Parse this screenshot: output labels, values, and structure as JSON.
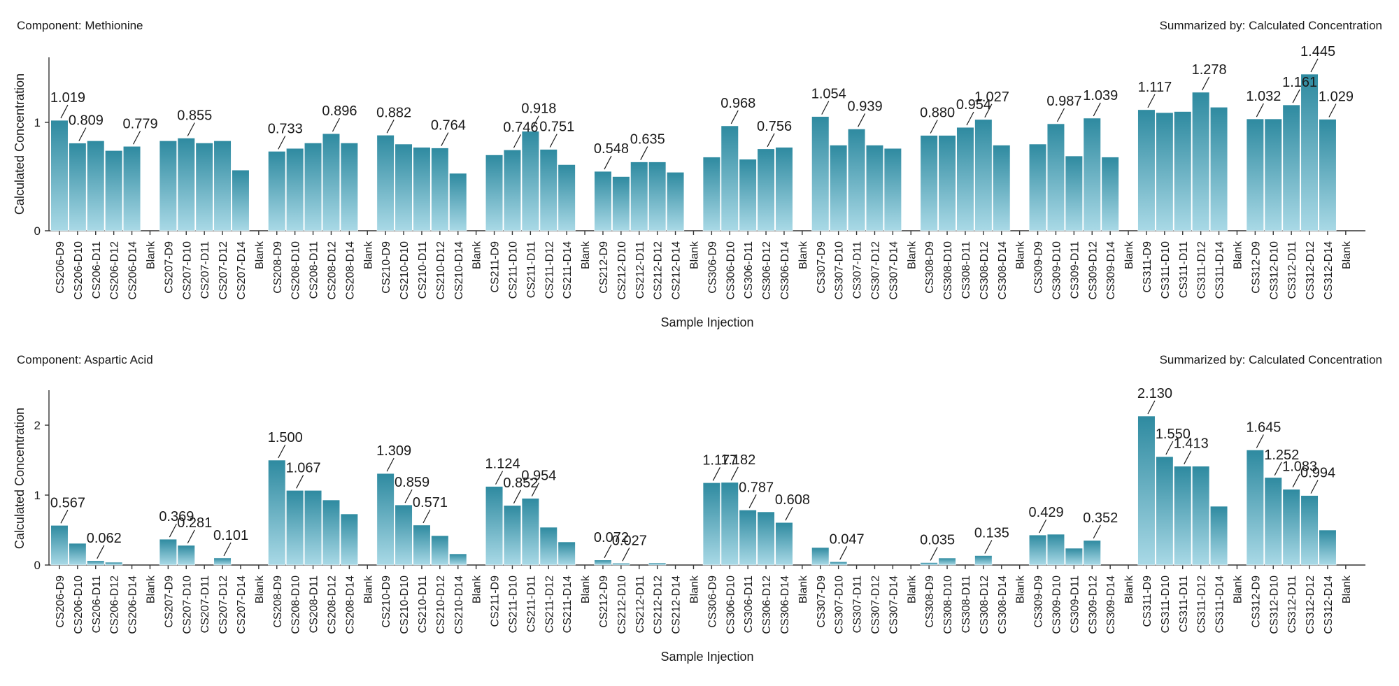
{
  "chart_data": [
    {
      "type": "bar",
      "component_label": "Component: Methionine",
      "summary_label": "Summarized by: Calculated Concentration",
      "xlabel": "Sample Injection",
      "ylabel": "Calculated Concentration",
      "ylim": [
        0,
        1.6
      ],
      "yticks": [
        0,
        1
      ],
      "categories": [
        "CS206-D9",
        "CS206-D10",
        "CS206-D11",
        "CS206-D12",
        "CS206-D14",
        "Blank",
        "CS207-D9",
        "CS207-D10",
        "CS207-D11",
        "CS207-D12",
        "CS207-D14",
        "Blank",
        "CS208-D9",
        "CS208-D10",
        "CS208-D11",
        "CS208-D12",
        "CS208-D14",
        "Blank",
        "CS210-D9",
        "CS210-D10",
        "CS210-D11",
        "CS210-D12",
        "CS210-D14",
        "Blank",
        "CS211-D9",
        "CS211-D10",
        "CS211-D11",
        "CS211-D12",
        "CS211-D14",
        "Blank",
        "CS212-D9",
        "CS212-D10",
        "CS212-D11",
        "CS212-D12",
        "CS212-D14",
        "Blank",
        "CS306-D9",
        "CS306-D10",
        "CS306-D11",
        "CS306-D12",
        "CS306-D14",
        "Blank",
        "CS307-D9",
        "CS307-D10",
        "CS307-D11",
        "CS307-D12",
        "CS307-D14",
        "Blank",
        "CS308-D9",
        "CS308-D10",
        "CS308-D11",
        "CS308-D12",
        "CS308-D14",
        "Blank",
        "CS309-D9",
        "CS309-D10",
        "CS309-D11",
        "CS309-D12",
        "CS309-D14",
        "Blank",
        "CS311-D9",
        "CS311-D10",
        "CS311-D11",
        "CS311-D12",
        "CS311-D14",
        "Blank",
        "CS312-D9",
        "CS312-D10",
        "CS312-D11",
        "CS312-D12",
        "CS312-D14",
        "Blank"
      ],
      "values": [
        1.019,
        0.809,
        0.83,
        0.74,
        0.779,
        null,
        0.83,
        0.855,
        0.81,
        0.83,
        0.56,
        null,
        0.733,
        0.76,
        0.81,
        0.896,
        0.81,
        null,
        0.882,
        0.8,
        0.77,
        0.764,
        0.53,
        null,
        0.7,
        0.746,
        0.918,
        0.751,
        0.61,
        null,
        0.548,
        0.5,
        0.635,
        0.635,
        0.54,
        null,
        0.68,
        0.968,
        0.66,
        0.756,
        0.77,
        null,
        1.054,
        0.79,
        0.939,
        0.79,
        0.76,
        null,
        0.88,
        0.88,
        0.954,
        1.027,
        0.79,
        null,
        0.8,
        0.987,
        0.69,
        1.039,
        0.68,
        null,
        1.117,
        1.09,
        1.1,
        1.278,
        1.14,
        null,
        1.032,
        1.032,
        1.161,
        1.445,
        1.029,
        null
      ],
      "data_labels": [
        "1.019",
        "0.809",
        null,
        null,
        "0.779",
        null,
        null,
        "0.855",
        null,
        null,
        null,
        null,
        "0.733",
        null,
        null,
        "0.896",
        null,
        null,
        "0.882",
        null,
        null,
        "0.764",
        null,
        null,
        null,
        "0.746",
        "0.918",
        "0.751",
        null,
        null,
        "0.548",
        null,
        "0.635",
        null,
        null,
        null,
        null,
        "0.968",
        null,
        "0.756",
        null,
        null,
        "1.054",
        null,
        "0.939",
        null,
        null,
        null,
        "0.880",
        null,
        "0.954",
        "1.027",
        null,
        null,
        null,
        "0.987",
        null,
        "1.039",
        null,
        null,
        "1.117",
        null,
        null,
        "1.278",
        null,
        null,
        "1.032",
        null,
        "1.161",
        "1.445",
        "1.029",
        null
      ]
    },
    {
      "type": "bar",
      "component_label": "Component: Aspartic Acid",
      "summary_label": "Summarized by: Calculated Concentration",
      "xlabel": "Sample Injection",
      "ylabel": "Calculated Concentration",
      "ylim": [
        0,
        2.5
      ],
      "yticks": [
        0,
        1,
        2
      ],
      "categories": [
        "CS206-D9",
        "CS206-D10",
        "CS206-D11",
        "CS206-D12",
        "CS206-D14",
        "Blank",
        "CS207-D9",
        "CS207-D10",
        "CS207-D11",
        "CS207-D12",
        "CS207-D14",
        "Blank",
        "CS208-D9",
        "CS208-D10",
        "CS208-D11",
        "CS208-D12",
        "CS208-D14",
        "Blank",
        "CS210-D9",
        "CS210-D10",
        "CS210-D11",
        "CS210-D12",
        "CS210-D14",
        "Blank",
        "CS211-D9",
        "CS211-D10",
        "CS211-D11",
        "CS211-D12",
        "CS211-D14",
        "Blank",
        "CS212-D9",
        "CS212-D10",
        "CS212-D11",
        "CS212-D12",
        "CS212-D14",
        "Blank",
        "CS306-D9",
        "CS306-D10",
        "CS306-D11",
        "CS306-D12",
        "CS306-D14",
        "Blank",
        "CS307-D9",
        "CS307-D10",
        "CS307-D11",
        "CS307-D12",
        "CS307-D14",
        "Blank",
        "CS308-D9",
        "CS308-D10",
        "CS308-D11",
        "CS308-D12",
        "CS308-D14",
        "Blank",
        "CS309-D9",
        "CS309-D10",
        "CS309-D11",
        "CS309-D12",
        "CS309-D14",
        "Blank",
        "CS311-D9",
        "CS311-D10",
        "CS311-D11",
        "CS311-D12",
        "CS311-D14",
        "Blank",
        "CS312-D9",
        "CS312-D10",
        "CS312-D11",
        "CS312-D12",
        "CS312-D14",
        "Blank"
      ],
      "values": [
        0.567,
        0.31,
        0.062,
        0.04,
        0.0,
        null,
        0.369,
        0.281,
        0.0,
        0.101,
        0.0,
        null,
        1.5,
        1.067,
        1.067,
        0.93,
        0.73,
        null,
        1.309,
        0.859,
        0.571,
        0.42,
        0.16,
        null,
        1.124,
        0.852,
        0.954,
        0.54,
        0.33,
        null,
        0.072,
        0.027,
        0.0,
        0.03,
        0.0,
        null,
        1.177,
        1.182,
        0.787,
        0.76,
        0.608,
        null,
        0.25,
        0.047,
        0.0,
        0.0,
        0.0,
        null,
        0.035,
        0.1,
        0.0,
        0.135,
        0.0,
        null,
        0.429,
        0.44,
        0.24,
        0.352,
        0.0,
        null,
        2.13,
        1.55,
        1.413,
        1.413,
        0.84,
        null,
        1.645,
        1.252,
        1.083,
        0.994,
        0.5,
        null
      ],
      "data_labels": [
        "0.567",
        null,
        "0.062",
        null,
        null,
        null,
        "0.369",
        "0.281",
        null,
        "0.101",
        null,
        null,
        "1.500",
        "1.067",
        null,
        null,
        null,
        null,
        "1.309",
        "0.859",
        "0.571",
        null,
        null,
        null,
        "1.124",
        "0.852",
        "0.954",
        null,
        null,
        null,
        "0.072",
        "0.027",
        null,
        null,
        null,
        null,
        "1.177",
        "1.182",
        "0.787",
        null,
        "0.608",
        null,
        null,
        "0.047",
        null,
        null,
        null,
        null,
        "0.035",
        null,
        null,
        "0.135",
        null,
        null,
        "0.429",
        null,
        null,
        "0.352",
        null,
        null,
        "2.130",
        "1.550",
        "1.413",
        null,
        null,
        null,
        "1.645",
        "1.252",
        "1.083",
        "0.994",
        null,
        null
      ]
    }
  ]
}
